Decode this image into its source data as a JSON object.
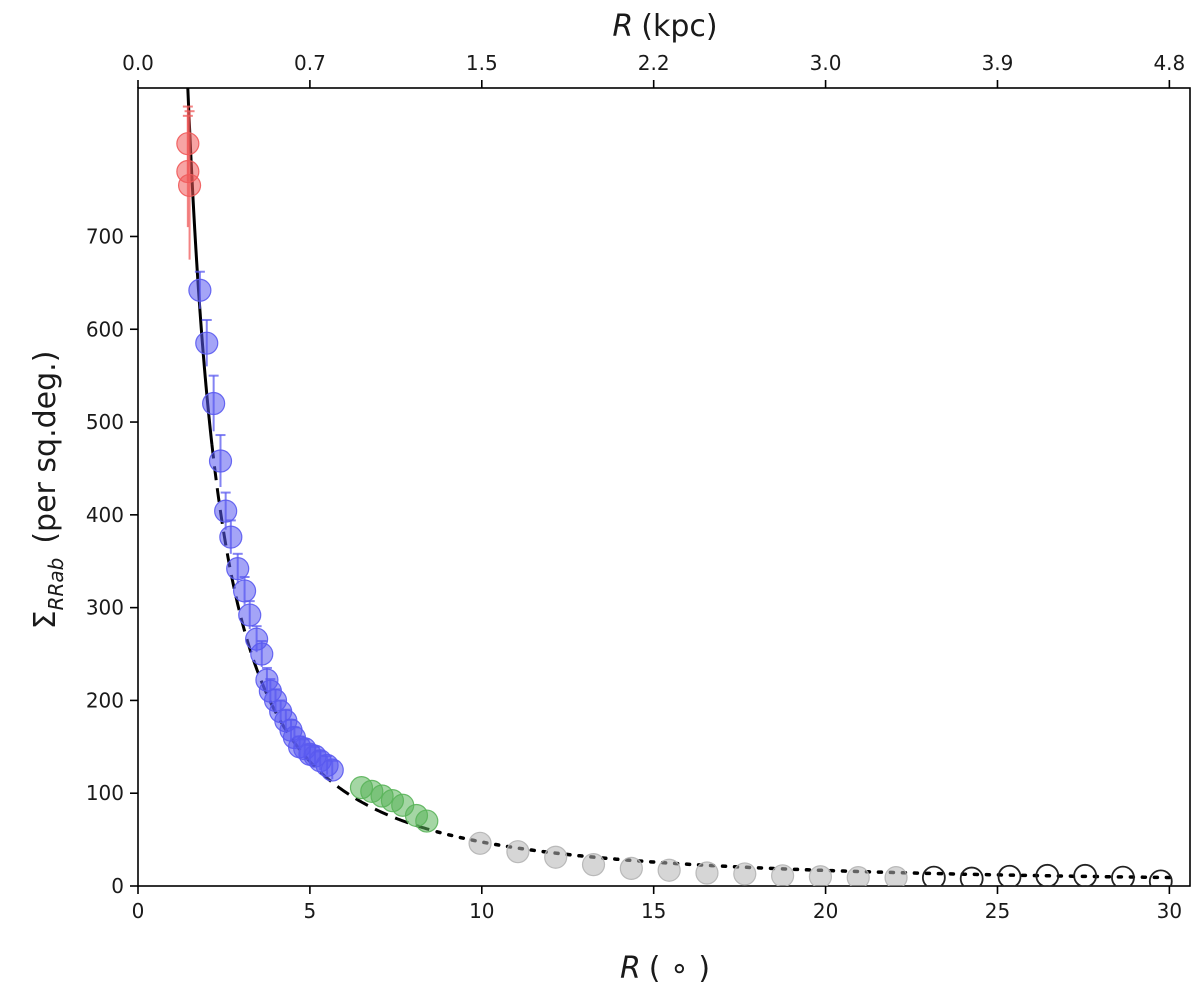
{
  "chart_data": {
    "type": "scatter",
    "title": "",
    "xlabel": "R",
    "xlabel_unit": "( ∘ )",
    "top_xlabel": "R",
    "top_xlabel_unit": "(kpc)",
    "ylabel": "Σ",
    "ylabel_sub": "RRab",
    "ylabel_unit": "(per sq.deg.)",
    "xlim": [
      0,
      30.6
    ],
    "ylim": [
      0,
      860
    ],
    "x_ticks": [
      0,
      5,
      10,
      15,
      20,
      25,
      30
    ],
    "y_ticks": [
      0,
      100,
      200,
      300,
      400,
      500,
      600,
      700
    ],
    "top_x_ticks": [
      {
        "at": 0,
        "label": "0.0"
      },
      {
        "at": 5,
        "label": "0.7"
      },
      {
        "at": 10,
        "label": "1.5"
      },
      {
        "at": 15,
        "label": "2.2"
      },
      {
        "at": 20,
        "label": "3.0"
      },
      {
        "at": 25,
        "label": "3.9"
      },
      {
        "at": 30,
        "label": "4.8"
      }
    ],
    "colors": {
      "red": "#f05a5a",
      "blue": "#5a5af0",
      "green": "#5ab45a",
      "gray": "#b4b4b4",
      "open": "#222222",
      "line": "#000000"
    },
    "series": [
      {
        "marker": "filled",
        "color": "red",
        "x": [
          1.45,
          1.45,
          1.5
        ],
        "y": [
          800,
          770,
          755
        ],
        "err": [
          40,
          60,
          80
        ]
      },
      {
        "marker": "filled",
        "color": "blue",
        "x": [
          1.8,
          2.0,
          2.2,
          2.4,
          2.55,
          2.7,
          2.9,
          3.1,
          3.25,
          3.45,
          3.6,
          3.75,
          3.85,
          4.0,
          4.15,
          4.3,
          4.45,
          4.55,
          4.7,
          4.85,
          5.0,
          5.15,
          5.3,
          5.5,
          5.65
        ],
        "y": [
          642,
          585,
          520,
          458,
          404,
          376,
          342,
          318,
          292,
          266,
          250,
          222,
          210,
          200,
          188,
          178,
          168,
          160,
          150,
          148,
          142,
          140,
          135,
          130,
          125
        ],
        "err": [
          20,
          25,
          30,
          28,
          20,
          18,
          16,
          15,
          15,
          14,
          14,
          13,
          13,
          12,
          12,
          12,
          11,
          11,
          11,
          10,
          10,
          10,
          10,
          10,
          10
        ]
      },
      {
        "marker": "filled",
        "color": "green",
        "x": [
          6.5,
          6.8,
          7.1,
          7.4,
          7.7,
          8.1,
          8.4
        ],
        "y": [
          106,
          102,
          97,
          92,
          87,
          76,
          70
        ],
        "err": [
          0,
          0,
          0,
          0,
          0,
          0,
          0
        ]
      },
      {
        "marker": "filled",
        "color": "gray",
        "x": [
          9.95,
          11.05,
          12.15,
          13.25,
          14.35,
          15.45,
          16.55,
          17.65,
          18.75,
          19.85,
          20.95,
          22.05
        ],
        "y": [
          46,
          37,
          31,
          23,
          19,
          17,
          14,
          13,
          11,
          10,
          9,
          9
        ],
        "err": [
          0,
          0,
          0,
          0,
          0,
          0,
          0,
          0,
          0,
          0,
          0,
          0
        ]
      },
      {
        "marker": "open",
        "color": "open",
        "x": [
          23.15,
          24.25,
          25.35,
          26.45,
          27.55,
          28.65,
          29.75
        ],
        "y": [
          9,
          8,
          10,
          11,
          11,
          9,
          5
        ],
        "err": [
          0,
          0,
          0,
          0,
          0,
          0,
          0
        ]
      }
    ],
    "fit_curve": {
      "model": "y = 1500 / R^1.5",
      "segments": [
        {
          "style": "solid",
          "from": 1.3,
          "to": 2.15
        },
        {
          "style": "dashed",
          "from": 2.15,
          "to": 8.7
        },
        {
          "style": "dotted",
          "from": 8.7,
          "to": 30.0
        }
      ]
    }
  }
}
